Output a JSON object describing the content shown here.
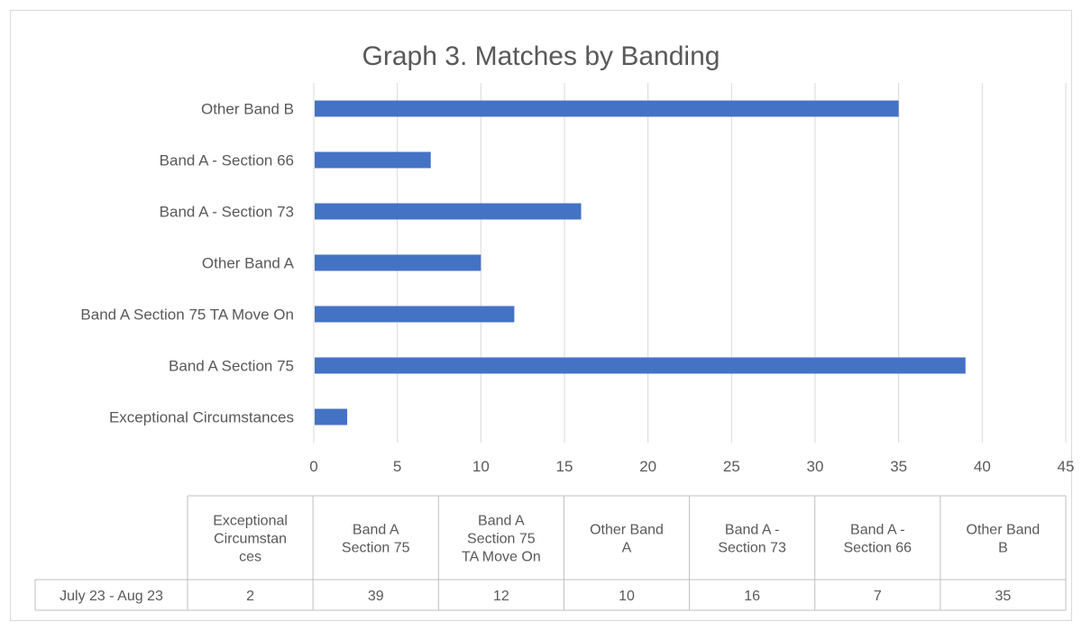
{
  "chart_data": {
    "type": "bar",
    "orientation": "horizontal",
    "title": "Graph 3. Matches by Banding",
    "xlabel": "",
    "ylabel": "",
    "categories": [
      "Exceptional Circumstances",
      "Band A Section 75",
      "Band A Section 75 TA Move On",
      "Other Band A",
      "Band A - Section 73",
      "Band A - Section 66",
      "Other Band B"
    ],
    "series": [
      {
        "name": "July 23 - Aug 23",
        "values": [
          2,
          39,
          12,
          10,
          16,
          7,
          35
        ]
      }
    ],
    "xlim": [
      0,
      45
    ],
    "x_ticks": [
      "0",
      "5",
      "10",
      "15",
      "20",
      "25",
      "30",
      "35",
      "40",
      "45"
    ],
    "grid": true,
    "legend": "none",
    "bar_color": "#4472c4",
    "data_table": {
      "column_headers": [
        [
          "Exceptional",
          "Circumstan",
          "ces"
        ],
        [
          "Band A",
          "Section 75"
        ],
        [
          "Band A",
          "Section 75",
          "TA Move On"
        ],
        [
          "Other Band",
          "A"
        ],
        [
          "Band A -",
          "Section 73"
        ],
        [
          "Band A -",
          "Section 66"
        ],
        [
          "Other Band",
          "B"
        ]
      ],
      "row_label": "July 23 - Aug 23",
      "row_values": [
        "2",
        "39",
        "12",
        "10",
        "16",
        "7",
        "35"
      ]
    }
  }
}
